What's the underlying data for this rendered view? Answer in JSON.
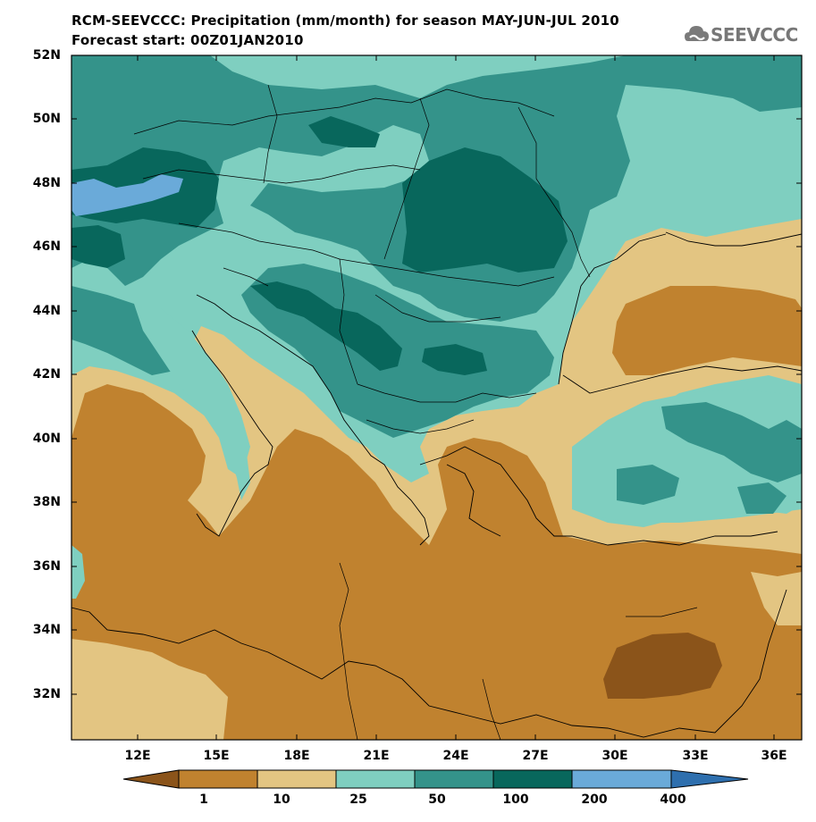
{
  "title_line1": "RCM-SEEVCCC: Precipitation (mm/month) for season MAY-JUN-JUL 2010",
  "title_line2": "Forecast start: 00Z01JAN2010",
  "logo_text": "SEEVCCC",
  "logo_icon": "cloud-icon",
  "lat_labels": [
    "52N",
    "50N",
    "48N",
    "46N",
    "44N",
    "42N",
    "40N",
    "38N",
    "36N",
    "34N",
    "32N"
  ],
  "lon_labels": [
    "12E",
    "15E",
    "18E",
    "21E",
    "24E",
    "27E",
    "30E",
    "33E",
    "36E"
  ],
  "colorbar": {
    "labels": [
      "1",
      "10",
      "25",
      "50",
      "100",
      "200",
      "400"
    ],
    "colors": [
      "#8b541a",
      "#c0822f",
      "#e3c582",
      "#7fcfc0",
      "#34938a",
      "#08675c",
      "#6aaad9",
      "#2e6fae"
    ]
  }
}
